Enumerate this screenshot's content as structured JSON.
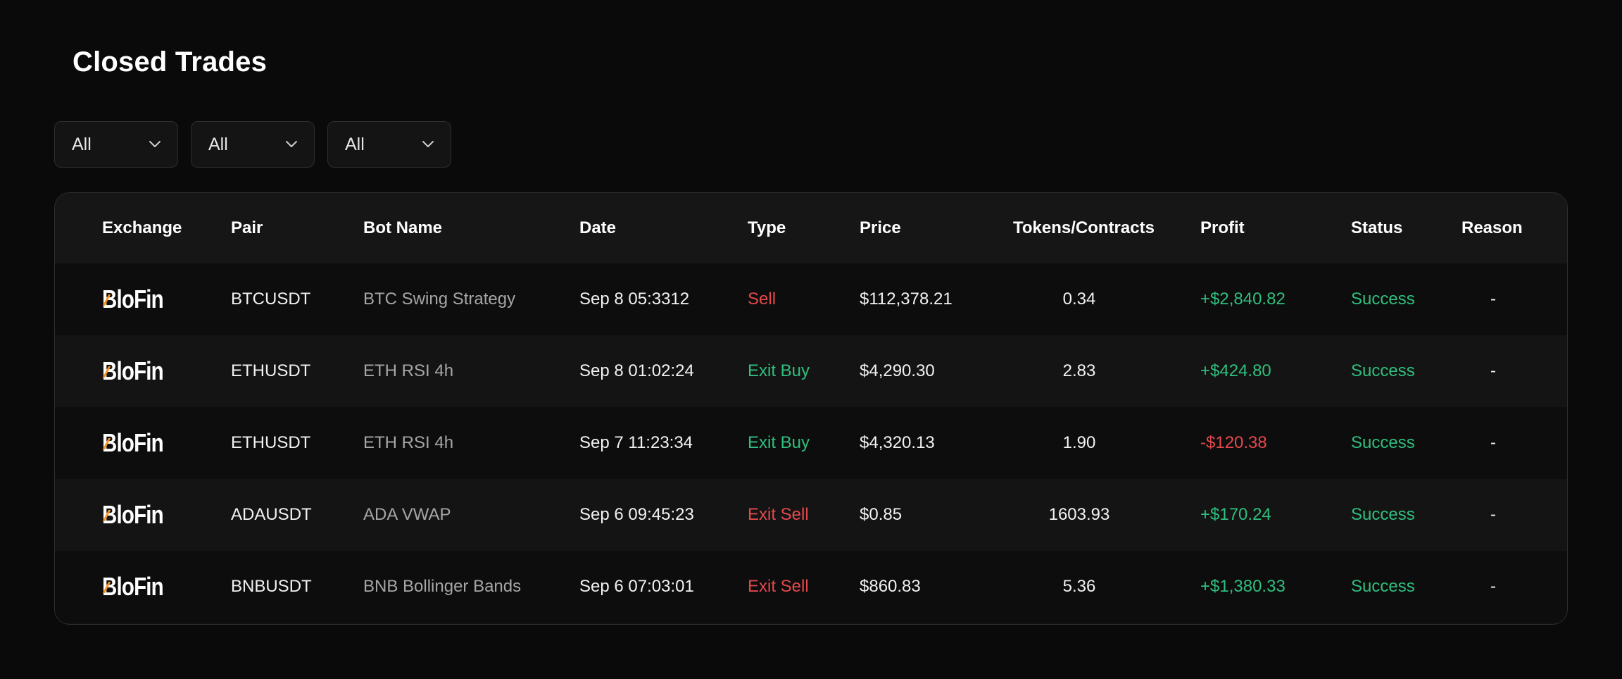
{
  "title": "Closed Trades",
  "filters": [
    {
      "value": "All",
      "icon": "chevron-down-icon"
    },
    {
      "value": "All",
      "icon": "chevron-down-icon"
    },
    {
      "value": "All",
      "icon": "chevron-down-icon"
    }
  ],
  "table": {
    "headers": {
      "exchange": "Exchange",
      "pair": "Pair",
      "bot": "Bot Name",
      "date": "Date",
      "type": "Type",
      "price": "Price",
      "tokens": "Tokens/Contracts",
      "profit": "Profit",
      "status": "Status",
      "reason": "Reason"
    },
    "rows": [
      {
        "exchange": "BloFin",
        "pair": "BTCUSDT",
        "bot": "BTC Swing Strategy",
        "date": "Sep 8 05:3312",
        "type": "Sell",
        "price": "$112,378.21",
        "tokens": "0.34",
        "profit": "+$2,840.82",
        "status": "Success",
        "reason": "-"
      },
      {
        "exchange": "BloFin",
        "pair": "ETHUSDT",
        "bot": "ETH RSI 4h",
        "date": "Sep 8 01:02:24",
        "type": "Exit Buy",
        "price": "$4,290.30",
        "tokens": "2.83",
        "profit": "+$424.80",
        "status": "Success",
        "reason": "-"
      },
      {
        "exchange": "BloFin",
        "pair": "ETHUSDT",
        "bot": "ETH RSI 4h",
        "date": "Sep 7 11:23:34",
        "type": "Exit Buy",
        "price": "$4,320.13",
        "tokens": "1.90",
        "profit": "-$120.38",
        "status": "Success",
        "reason": "-"
      },
      {
        "exchange": "BloFin",
        "pair": "ADAUSDT",
        "bot": "ADA VWAP",
        "date": "Sep 6 09:45:23",
        "type": "Exit Sell",
        "price": "$0.85",
        "tokens": "1603.93",
        "profit": "+$170.24",
        "status": "Success",
        "reason": "-"
      },
      {
        "exchange": "BloFin",
        "pair": "BNBUSDT",
        "bot": "BNB Bollinger Bands",
        "date": "Sep 6 07:03:01",
        "type": "Exit Sell",
        "price": "$860.83",
        "tokens": "5.36",
        "profit": "+$1,380.33",
        "status": "Success",
        "reason": "-"
      }
    ]
  },
  "colors": {
    "background": "#0a0a0a",
    "positive": "#2fbf7e",
    "negative": "#e5484d",
    "logo_accent": "#f7931a"
  }
}
